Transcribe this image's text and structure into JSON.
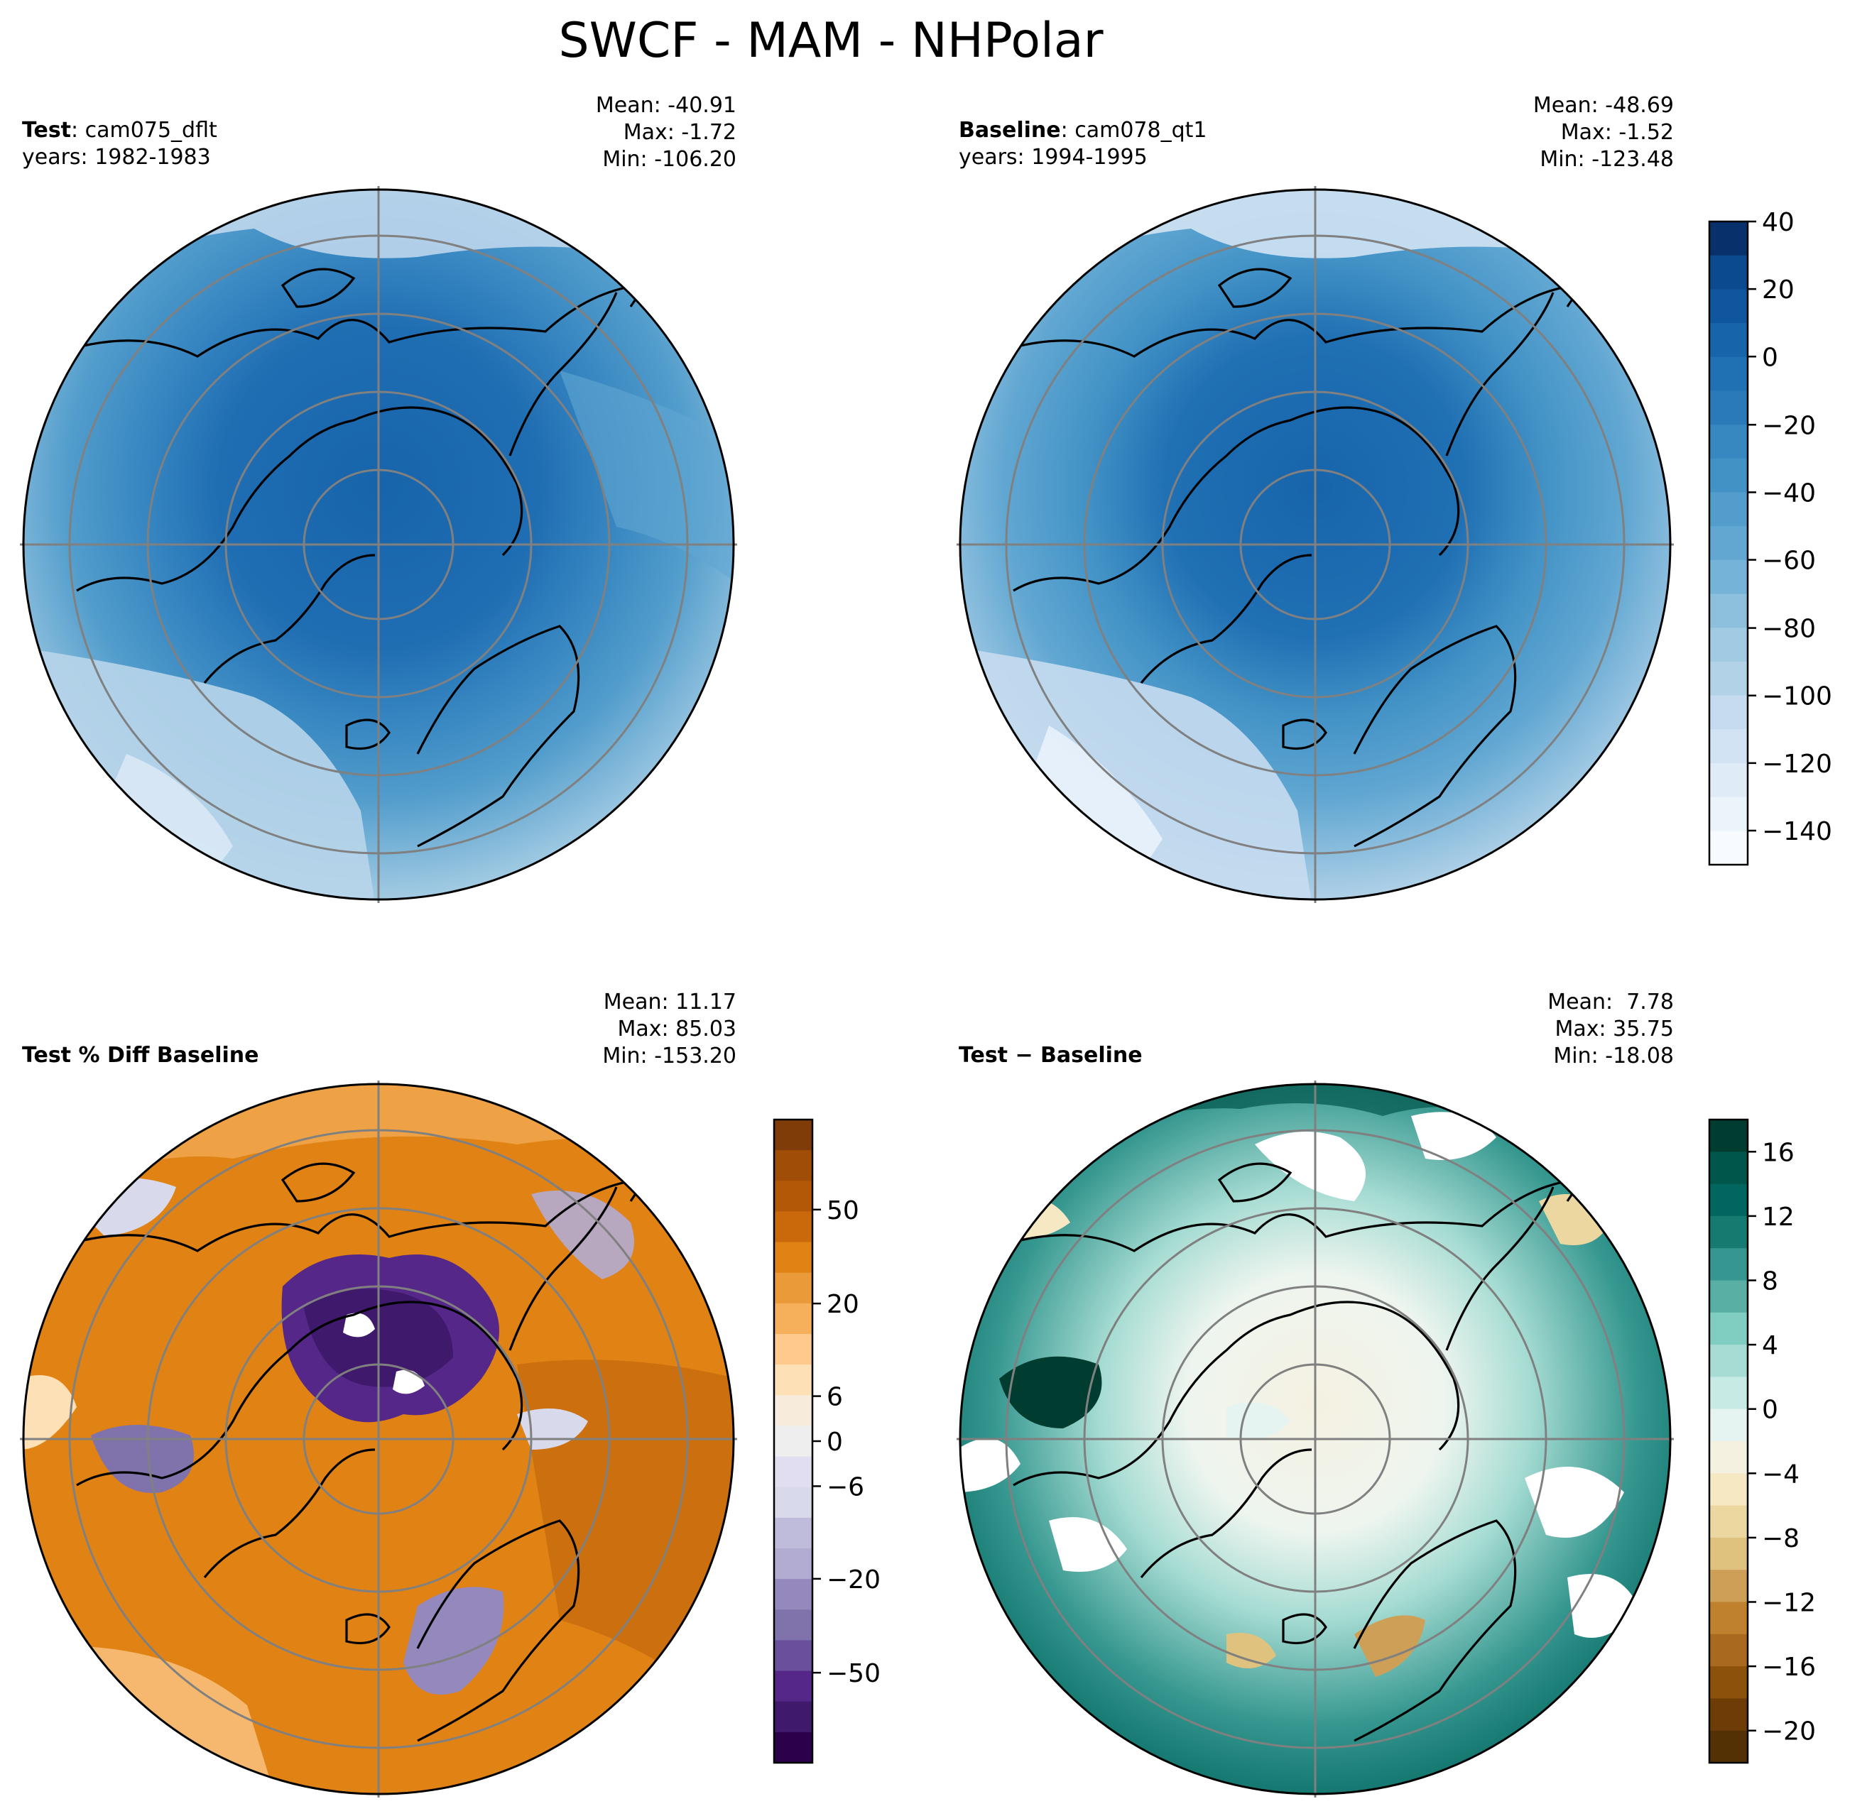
{
  "figure": {
    "title": "SWCF - MAM - NHPolar"
  },
  "panels": {
    "test": {
      "label_bold": "Test",
      "label_rest": ": cam075_dflt",
      "years": "years: 1982-1983",
      "mean": "Mean: -40.91",
      "max": "Max: -1.72",
      "min": "Min: -106.20"
    },
    "baseline": {
      "label_bold": "Baseline",
      "label_rest": ": cam078_qt1",
      "years": "years: 1994-1995",
      "mean": "Mean: -48.69",
      "max": "Max: -1.52",
      "min": "Min: -123.48"
    },
    "pct_diff": {
      "label_bold": "Test % Diff Baseline",
      "mean": "Mean: 11.17",
      "max": "Max: 85.03",
      "min": "Min: -153.20"
    },
    "diff": {
      "label_bold": "Test − Baseline",
      "mean": "Mean:  7.78",
      "max": "Max: 35.75",
      "min": "Min: -18.08"
    }
  },
  "colorbars": {
    "main": {
      "ticks": [
        "40",
        "20",
        "0",
        "−20",
        "−40",
        "−60",
        "−80",
        "−100",
        "−120",
        "−140"
      ],
      "colors": [
        "#08306b",
        "#0b4a8f",
        "#10569e",
        "#1764ab",
        "#2070b4",
        "#2a7ab9",
        "#3787c0",
        "#4292c6",
        "#529dcc",
        "#61a7d2",
        "#75b4d8",
        "#8cc0dd",
        "#a0cbe2",
        "#b2d2e8",
        "#c6dbef",
        "#d2e3f3",
        "#dfebf7",
        "#ebf3fb",
        "#f7fbff"
      ]
    },
    "pct": {
      "ticks": [
        "50",
        "20",
        "6",
        "0",
        "−6",
        "−20",
        "−50"
      ],
      "colors": [
        "#7f3b08",
        "#a04d07",
        "#b35806",
        "#c9690c",
        "#e08214",
        "#eb9a3a",
        "#f6b05c",
        "#fdc98c",
        "#fee0b6",
        "#f7ecdc",
        "#eeeeee",
        "#e0def0",
        "#d8daeb",
        "#bfbbdb",
        "#b2abd2",
        "#9488bd",
        "#8073ac",
        "#6a4f9c",
        "#542788",
        "#3f1a6c",
        "#2d004b"
      ]
    },
    "diff": {
      "ticks": [
        "16",
        "12",
        "8",
        "4",
        "0",
        "−4",
        "−8",
        "−12",
        "−16",
        "−20"
      ],
      "colors": [
        "#003c30",
        "#01564b",
        "#01665e",
        "#157a70",
        "#35978f",
        "#59afa4",
        "#80cdc1",
        "#a6dcd3",
        "#c7eae5",
        "#e6f4f1",
        "#f5f1e1",
        "#f6e8c3",
        "#ecd7a0",
        "#dfc27d",
        "#cea057",
        "#bf812d",
        "#a96a1f",
        "#8c510a",
        "#6e3d07",
        "#543005"
      ]
    }
  }
}
